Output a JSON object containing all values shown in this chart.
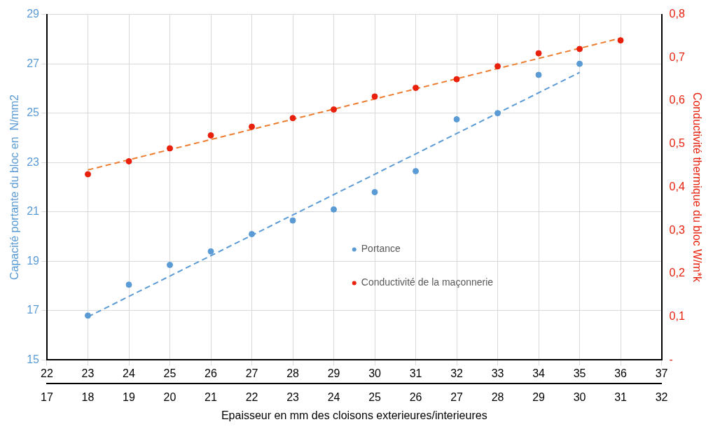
{
  "chart_data": {
    "type": "scatter",
    "xlabel": "Epaisseur en mm des cloisons exterieures/interieures",
    "ylabel": "Capacité portante du bloc en  N/mm2",
    "y2label": "Conductivité thermique du bloc W/m*k",
    "series": [
      {
        "name": "Portance",
        "color": "#5b9bd5",
        "x": [
          23,
          24,
          25,
          26,
          27,
          28,
          29,
          30,
          31,
          32,
          33,
          34,
          35
        ],
        "values": [
          16.8,
          18.05,
          18.85,
          19.4,
          20.1,
          20.65,
          21.1,
          21.8,
          22.65,
          24.75,
          25.0,
          26.55,
          27.0
        ]
      },
      {
        "name": "Conductivité de la maçonnerie",
        "axis": "y2",
        "color": "#e8200c",
        "x": [
          23,
          24,
          25,
          26,
          27,
          28,
          29,
          30,
          31,
          32,
          33,
          34,
          35,
          36
        ],
        "values": [
          0.43,
          0.46,
          0.49,
          0.52,
          0.54,
          0.56,
          0.58,
          0.61,
          0.63,
          0.65,
          0.68,
          0.71,
          0.72,
          0.74
        ]
      },
      {
        "type": "line",
        "marker": "none",
        "color": "#5b9bd5",
        "line_style": "dashed",
        "x": [
          23,
          35
        ],
        "values": [
          16.75,
          26.65
        ]
      },
      {
        "type": "line",
        "marker": "none",
        "axis": "y2",
        "color": "#ed7d31",
        "line_style": "dashed",
        "x": [
          23,
          36
        ],
        "values": [
          0.44,
          0.745
        ]
      }
    ],
    "xlim": [
      22,
      37
    ],
    "xticks": [
      22,
      23,
      24,
      25,
      26,
      27,
      28,
      29,
      30,
      31,
      32,
      33,
      34,
      35,
      36,
      37
    ],
    "x2lim": [
      17,
      32
    ],
    "x2ticks": [
      17,
      18,
      19,
      20,
      21,
      22,
      23,
      24,
      25,
      26,
      27,
      28,
      29,
      30,
      31,
      32
    ],
    "ylim": [
      15,
      29
    ],
    "yticks": [
      15,
      17,
      19,
      21,
      23,
      25,
      27,
      29
    ],
    "y2lim": [
      0,
      0.8
    ],
    "y2ticks": [
      {
        "value": 0,
        "label": "-"
      },
      {
        "value": 0.1,
        "label": "0,1"
      },
      {
        "value": 0.2,
        "label": "0,2"
      },
      {
        "value": 0.3,
        "label": "0,3"
      },
      {
        "value": 0.4,
        "label": "0,4"
      },
      {
        "value": 0.5,
        "label": "0,5"
      },
      {
        "value": 0.6,
        "label": "0,6"
      },
      {
        "value": 0.7,
        "label": "0,7"
      },
      {
        "value": 0.8,
        "label": "0,8"
      }
    ],
    "grid": true,
    "legend": "right",
    "marker": "circle"
  }
}
